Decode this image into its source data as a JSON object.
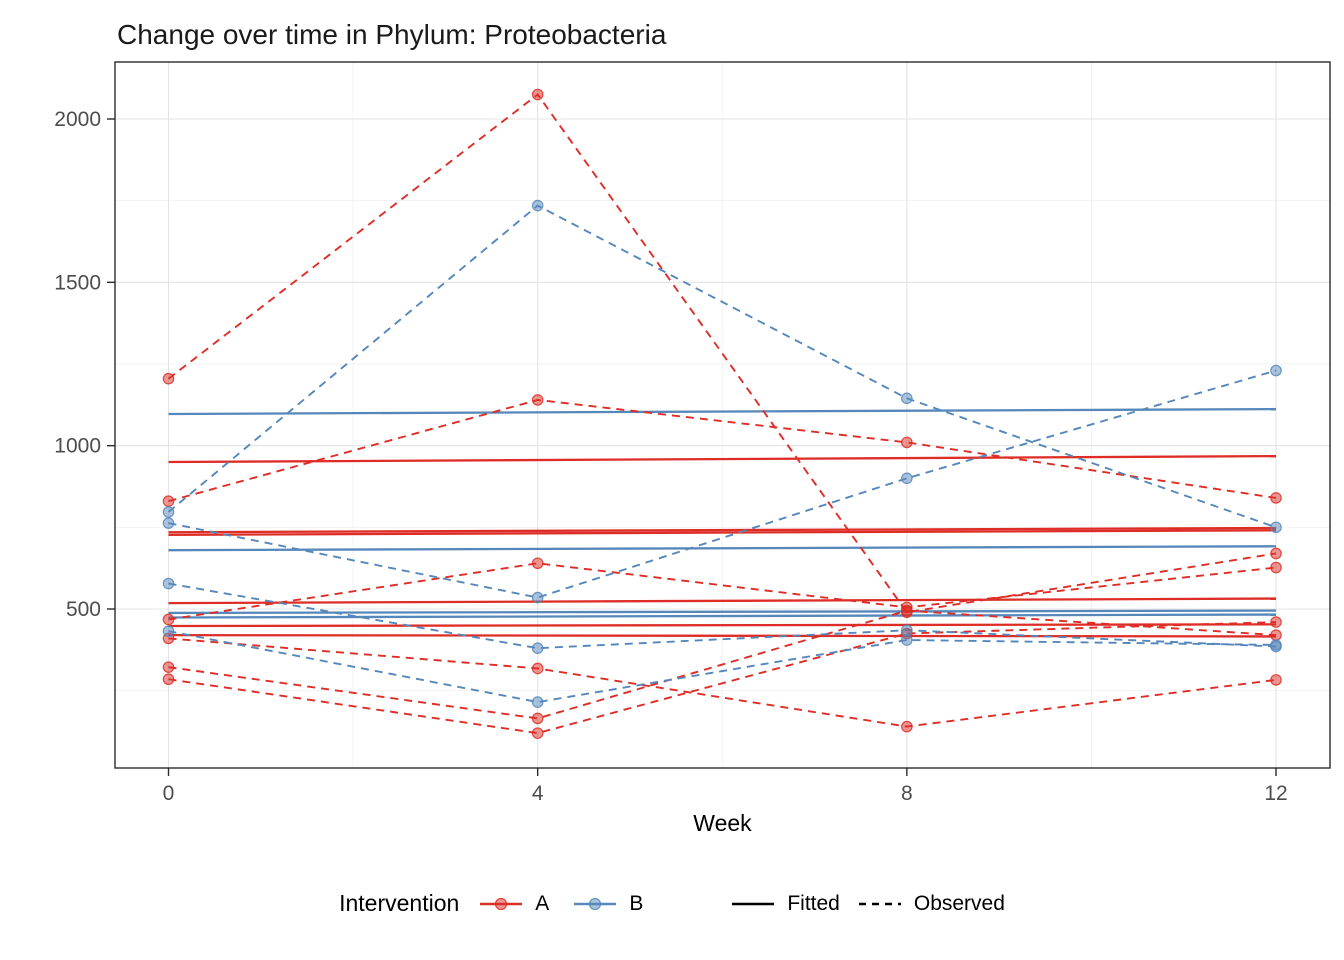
{
  "title": "Change over time in Phylum: Proteobacteria",
  "axes": {
    "x": {
      "label": "Week",
      "ticks": [
        0,
        4,
        8,
        12
      ],
      "minor_ticks": [
        2,
        6,
        10
      ],
      "domain": [
        0,
        12
      ]
    },
    "y": {
      "ticks": [
        500,
        1000,
        1500,
        2000
      ],
      "minor_ticks": [
        250,
        750,
        1250,
        1750
      ],
      "domain": [
        20,
        2175
      ]
    }
  },
  "legend": {
    "title": "Intervention",
    "color_items": [
      {
        "label": "A",
        "color": "#DE2D26"
      },
      {
        "label": "B",
        "color": "#5587BB"
      }
    ],
    "linetype_items": [
      {
        "label": "Fitted",
        "style": "solid"
      },
      {
        "label": "Observed",
        "style": "dashed"
      }
    ]
  },
  "colors": {
    "A": "#DE2D26",
    "B": "#5587BB",
    "grid_major": "#E3E3E3",
    "grid_minor": "#F1F1F1",
    "axis_line": "#2b2b2b",
    "tick_label": "#4D4D4D",
    "linetype_key": "#000000"
  },
  "chart_data": {
    "type": "line",
    "title": "Change over time in Phylum: Proteobacteria",
    "xlabel": "Week",
    "ylabel": "",
    "x": [
      0,
      4,
      8,
      12
    ],
    "ylim": [
      20,
      2175
    ],
    "grid": true,
    "legend_position": "bottom",
    "observed": [
      {
        "group": "A",
        "values": [
          1205,
          2075,
          490,
          670
        ]
      },
      {
        "group": "A",
        "values": [
          830,
          1140,
          1010,
          840
        ]
      },
      {
        "group": "A",
        "values": [
          468,
          640,
          505,
          627
        ]
      },
      {
        "group": "A",
        "values": [
          410,
          318,
          140,
          283
        ]
      },
      {
        "group": "A",
        "values": [
          322,
          165,
          495,
          420
        ]
      },
      {
        "group": "A",
        "values": [
          285,
          120,
          425,
          460
        ]
      },
      {
        "group": "B",
        "values": [
          797,
          1735,
          1145,
          750
        ]
      },
      {
        "group": "B",
        "values": [
          763,
          535,
          900,
          1230
        ]
      },
      {
        "group": "B",
        "values": [
          578,
          380,
          435,
          385
        ]
      },
      {
        "group": "B",
        "values": [
          432,
          215,
          405,
          390
        ]
      }
    ],
    "fitted": [
      {
        "group": "A",
        "start": 950,
        "end": 968
      },
      {
        "group": "A",
        "start": 735,
        "end": 748
      },
      {
        "group": "A",
        "start": 727,
        "end": 741
      },
      {
        "group": "A",
        "start": 518,
        "end": 532
      },
      {
        "group": "A",
        "start": 448,
        "end": 453
      },
      {
        "group": "A",
        "start": 420,
        "end": 416
      },
      {
        "group": "B",
        "start": 1097,
        "end": 1112
      },
      {
        "group": "B",
        "start": 680,
        "end": 692
      },
      {
        "group": "B",
        "start": 488,
        "end": 495
      },
      {
        "group": "B",
        "start": 474,
        "end": 483
      }
    ]
  }
}
